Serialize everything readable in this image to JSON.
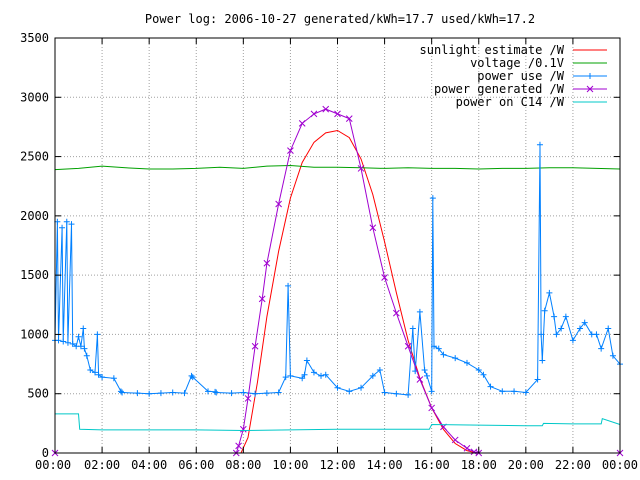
{
  "chart_data": {
    "type": "line",
    "title": "Power log: 2006-10-27 generated/kWh=17.7 used/kWh=17.2",
    "xlabel": "",
    "ylabel": "",
    "xlim": [
      0,
      24
    ],
    "ylim": [
      0,
      3500
    ],
    "grid": true,
    "legend_position": "top-right",
    "x_ticks": [
      "00:00",
      "02:00",
      "04:00",
      "06:00",
      "08:00",
      "10:00",
      "12:00",
      "14:00",
      "16:00",
      "18:00",
      "20:00",
      "22:00",
      "00:00"
    ],
    "y_ticks": [
      "0",
      "500",
      "1000",
      "1500",
      "2000",
      "2500",
      "3000",
      "3500"
    ],
    "series": [
      {
        "name": "sunlight estimate /W",
        "color": "#ff0000",
        "marker": "none",
        "x": [
          0,
          7.9,
          8.2,
          8.6,
          9.0,
          9.5,
          10.0,
          10.5,
          11.0,
          11.5,
          12.0,
          12.5,
          13.0,
          13.5,
          14.0,
          14.5,
          15.0,
          15.5,
          16.0,
          16.5,
          17.0,
          17.5,
          17.9,
          24
        ],
        "values": [
          0,
          0,
          130,
          600,
          1150,
          1700,
          2150,
          2450,
          2620,
          2700,
          2720,
          2660,
          2480,
          2180,
          1780,
          1350,
          950,
          630,
          380,
          200,
          80,
          20,
          0,
          0
        ]
      },
      {
        "name": "voltage /0.1V",
        "color": "#00a000",
        "marker": "none",
        "x": [
          0,
          1,
          2,
          3,
          4,
          5,
          6,
          7,
          8,
          9,
          10,
          11,
          12,
          13,
          14,
          15,
          16,
          17,
          18,
          19,
          20,
          21,
          22,
          23,
          24
        ],
        "values": [
          2390,
          2400,
          2420,
          2405,
          2395,
          2395,
          2400,
          2410,
          2400,
          2420,
          2425,
          2410,
          2410,
          2405,
          2400,
          2405,
          2400,
          2400,
          2395,
          2400,
          2400,
          2405,
          2405,
          2400,
          2395
        ]
      },
      {
        "name": "power use /W",
        "color": "#0080ff",
        "marker": "plus",
        "x": [
          0,
          0.1,
          0.15,
          0.3,
          0.35,
          0.5,
          0.55,
          0.7,
          0.75,
          0.9,
          1.0,
          1.1,
          1.2,
          1.25,
          1.35,
          1.5,
          1.7,
          1.8,
          1.85,
          2.0,
          2.5,
          2.8,
          2.85,
          3.5,
          4.0,
          4.5,
          5.0,
          5.5,
          5.8,
          5.85,
          6.5,
          6.8,
          6.85,
          7.5,
          8.0,
          8.5,
          9.0,
          9.5,
          9.8,
          9.9,
          10.0,
          10.5,
          10.6,
          10.7,
          11.0,
          11.3,
          11.5,
          12.0,
          12.5,
          13.0,
          13.5,
          13.8,
          14.0,
          14.5,
          15.0,
          15.2,
          15.3,
          15.5,
          15.7,
          15.8,
          16.0,
          16.05,
          16.1,
          16.3,
          16.5,
          17.0,
          17.5,
          18.0,
          18.2,
          18.5,
          19.0,
          19.5,
          20.0,
          20.5,
          20.6,
          20.65,
          20.7,
          20.8,
          21.0,
          21.2,
          21.3,
          21.5,
          21.7,
          22.0,
          22.3,
          22.5,
          22.8,
          23.0,
          23.2,
          23.5,
          23.7,
          24.0
        ],
        "values": [
          950,
          1950,
          950,
          1900,
          940,
          1950,
          930,
          1930,
          920,
          900,
          980,
          900,
          1050,
          880,
          820,
          700,
          680,
          1000,
          660,
          640,
          630,
          520,
          510,
          505,
          500,
          505,
          510,
          505,
          650,
          640,
          520,
          515,
          510,
          505,
          510,
          500,
          505,
          510,
          640,
          1410,
          650,
          630,
          660,
          780,
          680,
          650,
          660,
          550,
          520,
          550,
          650,
          700,
          510,
          500,
          490,
          1050,
          690,
          1190,
          700,
          650,
          520,
          2150,
          900,
          880,
          830,
          800,
          760,
          700,
          660,
          560,
          520,
          520,
          510,
          620,
          2600,
          1000,
          780,
          1200,
          1350,
          1150,
          1000,
          1050,
          1150,
          950,
          1050,
          1100,
          1000,
          1000,
          880,
          1050,
          820,
          750
        ]
      },
      {
        "name": "power generated /W",
        "color": "#a000d0",
        "marker": "cross",
        "x": [
          0,
          7.7,
          7.8,
          8.0,
          8.2,
          8.5,
          8.8,
          9.0,
          9.5,
          10.0,
          10.5,
          11.0,
          11.5,
          12.0,
          12.5,
          13.0,
          13.5,
          14.0,
          14.5,
          15.0,
          15.5,
          16.0,
          16.5,
          17.0,
          17.5,
          17.8,
          18.0,
          24
        ],
        "values": [
          0,
          0,
          60,
          200,
          460,
          900,
          1300,
          1600,
          2100,
          2550,
          2780,
          2860,
          2900,
          2860,
          2820,
          2400,
          1900,
          1480,
          1180,
          900,
          620,
          380,
          220,
          110,
          40,
          10,
          0,
          0
        ]
      },
      {
        "name": "power on C14 /W",
        "color": "#00c8c8",
        "marker": "none",
        "x": [
          0,
          1.0,
          1.05,
          2.0,
          4.0,
          6.0,
          8.0,
          10.0,
          12.0,
          14.0,
          15.9,
          16.0,
          18.0,
          20.0,
          20.7,
          20.75,
          22.0,
          23.2,
          23.25,
          24.0
        ],
        "values": [
          330,
          330,
          200,
          195,
          195,
          195,
          190,
          195,
          200,
          200,
          200,
          240,
          235,
          230,
          230,
          250,
          245,
          245,
          290,
          240
        ]
      }
    ]
  }
}
